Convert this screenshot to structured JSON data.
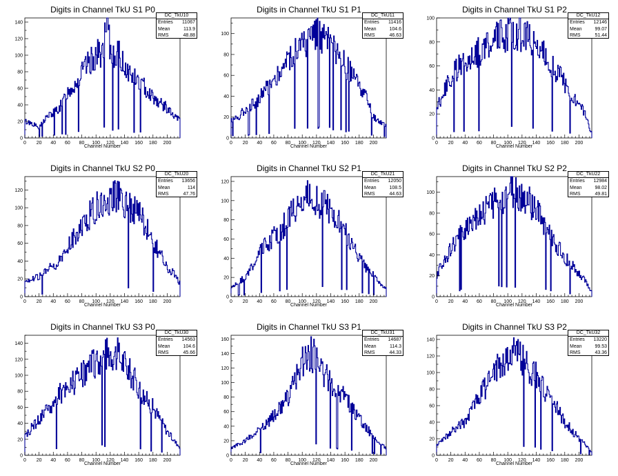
{
  "chart_data": [
    {
      "type": "histogram",
      "title": "Digits in Channel TkU S1 P0",
      "stats": {
        "name": "DC_TkU10",
        "entries": "11067",
        "mean": "113.9",
        "rms": "48.88"
      },
      "xlabel": "Channel Number",
      "xlim": [
        0,
        218
      ],
      "ylim": [
        0,
        145
      ],
      "xticks": [
        0,
        20,
        40,
        60,
        80,
        100,
        120,
        140,
        160,
        180,
        200
      ],
      "yticks": [
        0,
        10,
        20,
        30,
        40,
        50,
        60,
        70,
        80,
        90,
        100,
        110,
        120,
        130,
        140
      ],
      "ytick_labels": [
        "0",
        "20",
        "40",
        "60",
        "80",
        "100",
        "120",
        "140"
      ],
      "x": [
        0,
        10,
        20,
        30,
        40,
        50,
        60,
        70,
        80,
        90,
        100,
        110,
        116,
        120,
        130,
        140,
        150,
        160,
        170,
        180,
        190,
        200,
        210,
        218
      ],
      "values": [
        20,
        18,
        12,
        25,
        30,
        38,
        55,
        65,
        78,
        90,
        100,
        104,
        140,
        102,
        103,
        88,
        75,
        68,
        60,
        50,
        42,
        36,
        25,
        22
      ]
    },
    {
      "type": "histogram",
      "title": "Digits in Channel TkU S1 P1",
      "stats": {
        "name": "DC_TkU11",
        "entries": "11416",
        "mean": "104.6",
        "rms": "46.63"
      },
      "xlabel": "Channel Number",
      "xlim": [
        0,
        218
      ],
      "ylim": [
        0,
        115
      ],
      "xticks": [
        0,
        20,
        40,
        60,
        80,
        100,
        120,
        140,
        160,
        180,
        200
      ],
      "yticks": [
        0,
        10,
        20,
        30,
        40,
        50,
        60,
        70,
        80,
        90,
        100,
        110
      ],
      "ytick_labels": [
        "0",
        "20",
        "40",
        "60",
        "80",
        "100"
      ],
      "x": [
        0,
        10,
        20,
        30,
        40,
        50,
        60,
        70,
        80,
        90,
        100,
        110,
        120,
        130,
        140,
        150,
        160,
        170,
        180,
        190,
        200,
        210,
        218
      ],
      "values": [
        18,
        20,
        28,
        32,
        38,
        48,
        55,
        65,
        75,
        85,
        88,
        92,
        105,
        95,
        88,
        78,
        70,
        60,
        50,
        38,
        20,
        15,
        12
      ]
    },
    {
      "type": "histogram",
      "title": "Digits in Channel TkU S1 P2",
      "stats": {
        "name": "DC_TkU12",
        "entries": "12146",
        "mean": "99.07",
        "rms": "51.44"
      },
      "xlabel": "Channel Number",
      "xlim": [
        0,
        218
      ],
      "ylim": [
        0,
        100
      ],
      "xticks": [
        0,
        20,
        40,
        60,
        80,
        100,
        120,
        140,
        160,
        180,
        200
      ],
      "yticks": [
        0,
        10,
        20,
        30,
        40,
        50,
        60,
        70,
        80,
        90,
        100
      ],
      "ytick_labels": [
        "0",
        "20",
        "40",
        "60",
        "80",
        "100"
      ],
      "x": [
        0,
        10,
        20,
        30,
        40,
        50,
        60,
        70,
        80,
        90,
        100,
        110,
        120,
        130,
        140,
        150,
        160,
        170,
        180,
        190,
        200,
        210,
        216
      ],
      "values": [
        25,
        38,
        50,
        58,
        65,
        70,
        72,
        78,
        82,
        85,
        88,
        90,
        86,
        82,
        78,
        70,
        62,
        55,
        45,
        35,
        28,
        20,
        5
      ]
    },
    {
      "type": "histogram",
      "title": "Digits in Channel TkU S2 P0",
      "stats": {
        "name": "DC_TkU20",
        "entries": "13656",
        "mean": "114",
        "rms": "47.76"
      },
      "xlabel": "Channel Number",
      "xlim": [
        0,
        218
      ],
      "ylim": [
        0,
        135
      ],
      "xticks": [
        0,
        20,
        40,
        60,
        80,
        100,
        120,
        140,
        160,
        180,
        200
      ],
      "yticks": [
        0,
        10,
        20,
        30,
        40,
        50,
        60,
        70,
        80,
        90,
        100,
        110,
        120,
        130
      ],
      "ytick_labels": [
        "0",
        "20",
        "40",
        "60",
        "80",
        "100",
        "120"
      ],
      "x": [
        0,
        10,
        20,
        30,
        40,
        50,
        60,
        70,
        80,
        90,
        100,
        110,
        120,
        130,
        140,
        150,
        160,
        170,
        180,
        190,
        200,
        210,
        218
      ],
      "values": [
        18,
        20,
        22,
        28,
        35,
        40,
        55,
        68,
        78,
        90,
        100,
        105,
        110,
        112,
        108,
        100,
        92,
        80,
        62,
        48,
        32,
        25,
        15
      ]
    },
    {
      "type": "histogram",
      "title": "Digits in Channel TkU S2 P1",
      "stats": {
        "name": "DC_TkU21",
        "entries": "12050",
        "mean": "108.5",
        "rms": "44.63"
      },
      "xlabel": "Channel Number",
      "xlim": [
        0,
        218
      ],
      "ylim": [
        0,
        125
      ],
      "xticks": [
        0,
        20,
        40,
        60,
        80,
        100,
        120,
        140,
        160,
        180,
        200
      ],
      "yticks": [
        0,
        10,
        20,
        30,
        40,
        50,
        60,
        70,
        80,
        90,
        100,
        110,
        120
      ],
      "ytick_labels": [
        "0",
        "20",
        "40",
        "60",
        "80",
        "100",
        "120"
      ],
      "x": [
        0,
        10,
        20,
        30,
        40,
        50,
        60,
        70,
        80,
        90,
        100,
        110,
        120,
        130,
        140,
        150,
        160,
        170,
        180,
        190,
        200,
        210,
        218
      ],
      "values": [
        10,
        15,
        20,
        32,
        45,
        55,
        62,
        70,
        80,
        90,
        98,
        105,
        100,
        95,
        88,
        80,
        68,
        55,
        42,
        30,
        22,
        12,
        8
      ]
    },
    {
      "type": "histogram",
      "title": "Digits in Channel TkU S2 P2",
      "stats": {
        "name": "DC_TkU22",
        "entries": "12984",
        "mean": "98.02",
        "rms": "49.81"
      },
      "xlabel": "Channel Number",
      "xlim": [
        0,
        218
      ],
      "ylim": [
        0,
        115
      ],
      "xticks": [
        0,
        20,
        40,
        60,
        80,
        100,
        120,
        140,
        160,
        180,
        200
      ],
      "yticks": [
        0,
        10,
        20,
        30,
        40,
        50,
        60,
        70,
        80,
        90,
        100,
        110
      ],
      "ytick_labels": [
        "0",
        "20",
        "40",
        "60",
        "80",
        "100"
      ],
      "x": [
        0,
        10,
        20,
        30,
        40,
        50,
        60,
        70,
        80,
        90,
        100,
        110,
        120,
        130,
        140,
        150,
        160,
        170,
        180,
        190,
        200,
        210,
        216
      ],
      "values": [
        20,
        35,
        45,
        55,
        65,
        75,
        80,
        85,
        88,
        92,
        98,
        100,
        95,
        90,
        82,
        72,
        58,
        48,
        38,
        30,
        22,
        15,
        5
      ]
    },
    {
      "type": "histogram",
      "title": "Digits in Channel TkU S3 P0",
      "stats": {
        "name": "DC_TkU30",
        "entries": "14563",
        "mean": "104.6",
        "rms": "45.66"
      },
      "xlabel": "Channel Number",
      "xlim": [
        0,
        218
      ],
      "ylim": [
        0,
        150
      ],
      "xticks": [
        0,
        20,
        40,
        60,
        80,
        100,
        120,
        140,
        160,
        180,
        200
      ],
      "yticks": [
        0,
        10,
        20,
        30,
        40,
        50,
        60,
        70,
        80,
        90,
        100,
        110,
        120,
        130,
        140,
        150
      ],
      "ytick_labels": [
        "0",
        "20",
        "40",
        "60",
        "80",
        "100",
        "120",
        "140"
      ],
      "x": [
        0,
        10,
        20,
        30,
        40,
        50,
        60,
        70,
        80,
        90,
        100,
        110,
        120,
        130,
        140,
        150,
        160,
        170,
        180,
        190,
        200,
        210,
        218
      ],
      "values": [
        22,
        35,
        45,
        55,
        65,
        78,
        82,
        92,
        100,
        110,
        118,
        125,
        130,
        125,
        115,
        100,
        85,
        70,
        60,
        45,
        30,
        18,
        10
      ]
    },
    {
      "type": "histogram",
      "title": "Digits in Channel TkU S3 P1",
      "stats": {
        "name": "DC_TkU31",
        "entries": "14687",
        "mean": "114.3",
        "rms": "44.33"
      },
      "xlabel": "Channel Number",
      "xlim": [
        0,
        218
      ],
      "ylim": [
        0,
        165
      ],
      "xticks": [
        0,
        20,
        40,
        60,
        80,
        100,
        120,
        140,
        160,
        180,
        200
      ],
      "yticks": [
        0,
        10,
        20,
        30,
        40,
        50,
        60,
        70,
        80,
        90,
        100,
        110,
        120,
        130,
        140,
        150,
        160
      ],
      "ytick_labels": [
        "0",
        "20",
        "40",
        "60",
        "80",
        "100",
        "120",
        "140",
        "160"
      ],
      "x": [
        0,
        10,
        20,
        30,
        40,
        50,
        60,
        70,
        80,
        90,
        100,
        110,
        120,
        130,
        140,
        150,
        160,
        170,
        180,
        190,
        200,
        210,
        218
      ],
      "values": [
        10,
        15,
        20,
        28,
        35,
        45,
        55,
        65,
        80,
        100,
        130,
        140,
        135,
        115,
        100,
        88,
        80,
        65,
        50,
        38,
        25,
        15,
        10
      ]
    },
    {
      "type": "histogram",
      "title": "Digits in Channel TkU S3 P2",
      "stats": {
        "name": "DC_TkU32",
        "entries": "13220",
        "mean": "99.53",
        "rms": "43.36"
      },
      "xlabel": "Channel Number",
      "xlim": [
        0,
        218
      ],
      "ylim": [
        0,
        145
      ],
      "xticks": [
        0,
        20,
        40,
        60,
        80,
        100,
        120,
        140,
        160,
        180,
        200
      ],
      "yticks": [
        0,
        10,
        20,
        30,
        40,
        50,
        60,
        70,
        80,
        90,
        100,
        110,
        120,
        130,
        140
      ],
      "ytick_labels": [
        "0",
        "20",
        "40",
        "60",
        "80",
        "100",
        "120",
        "140"
      ],
      "x": [
        0,
        10,
        20,
        30,
        40,
        50,
        60,
        70,
        80,
        90,
        100,
        110,
        120,
        130,
        140,
        150,
        160,
        170,
        180,
        190,
        200,
        210,
        216
      ],
      "values": [
        12,
        20,
        28,
        35,
        40,
        55,
        70,
        85,
        100,
        110,
        120,
        125,
        115,
        105,
        95,
        82,
        70,
        55,
        40,
        30,
        20,
        12,
        5
      ]
    }
  ]
}
